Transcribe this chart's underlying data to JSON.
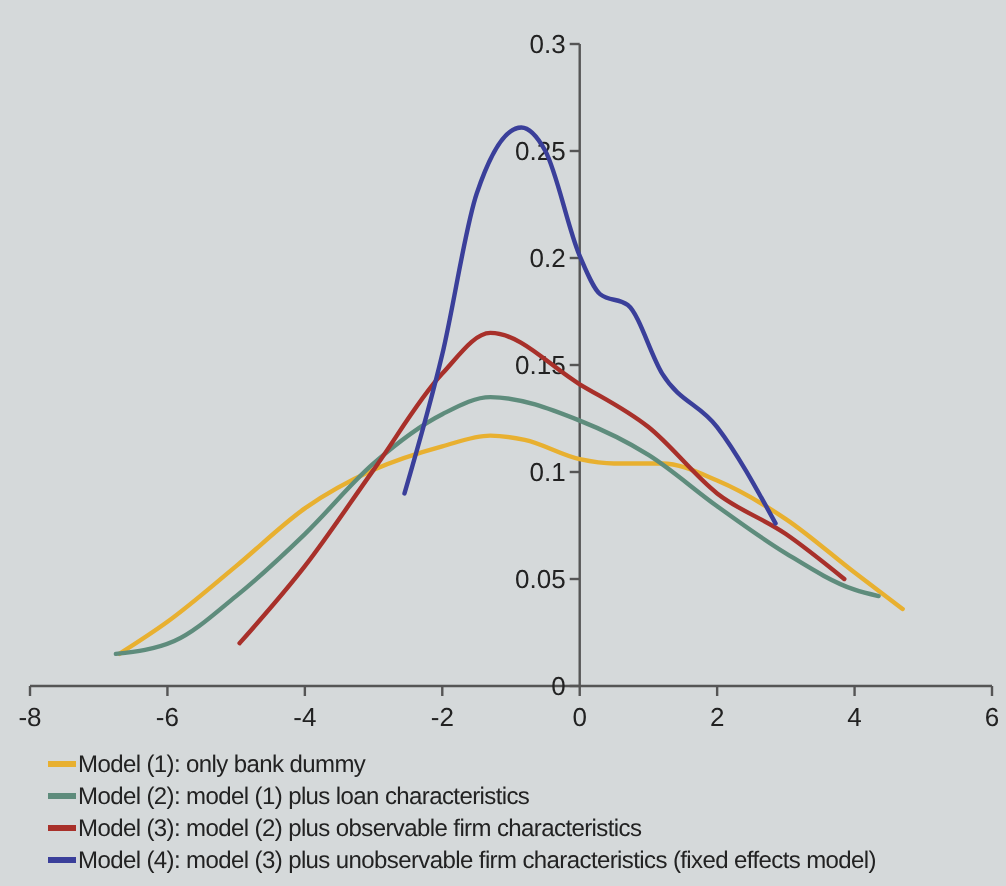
{
  "chart_data": {
    "type": "line",
    "xlim": [
      -8,
      6
    ],
    "xticks": [
      -8,
      -6,
      -4,
      -2,
      0,
      2,
      4,
      6
    ],
    "ylim": [
      0,
      0.3
    ],
    "yticks": [
      0,
      0.05,
      0.1,
      0.15,
      0.2,
      0.25,
      0.3
    ],
    "grid": false,
    "legend": "bottom",
    "marker": "none",
    "line_style": "solid",
    "series": [
      {
        "name": "Model (1): only bank dummy",
        "color": "#e8b030",
        "x": [
          -6.7,
          -6,
          -5,
          -4,
          -3,
          -2,
          -1.3,
          -0.8,
          0,
          0.5,
          1.2,
          2,
          3,
          4,
          4.7
        ],
        "values": [
          0.015,
          0.03,
          0.056,
          0.083,
          0.101,
          0.112,
          0.117,
          0.115,
          0.106,
          0.104,
          0.104,
          0.096,
          0.078,
          0.053,
          0.036
        ]
      },
      {
        "name": "Model (2): model (1) plus loan characteristics",
        "color": "#5e8c7c",
        "x": [
          -6.75,
          -5.9,
          -5,
          -4,
          -3,
          -2,
          -1.3,
          0,
          1,
          2,
          3,
          4,
          4.35
        ],
        "values": [
          0.015,
          0.021,
          0.042,
          0.071,
          0.104,
          0.127,
          0.135,
          0.124,
          0.108,
          0.084,
          0.062,
          0.045,
          0.042
        ]
      },
      {
        "name": "Model (3): model (2) plus observable firm characteristics",
        "color": "#a8302a",
        "x": [
          -4.95,
          -4,
          -3,
          -2,
          -1.3,
          0,
          1,
          2,
          3,
          3.85
        ],
        "values": [
          0.02,
          0.056,
          0.101,
          0.146,
          0.165,
          0.141,
          0.121,
          0.09,
          0.071,
          0.05
        ]
      },
      {
        "name": "Model (4): model (3) plus unobservable firm characteristics (fixed effects model)",
        "color": "#3a3f9a",
        "x": [
          -2.55,
          -2,
          -1.5,
          -0.85,
          -0.5,
          0,
          0.3,
          0.7,
          1.2,
          2,
          2.85
        ],
        "values": [
          0.09,
          0.155,
          0.23,
          0.261,
          0.25,
          0.201,
          0.183,
          0.178,
          0.146,
          0.121,
          0.076
        ]
      }
    ]
  }
}
